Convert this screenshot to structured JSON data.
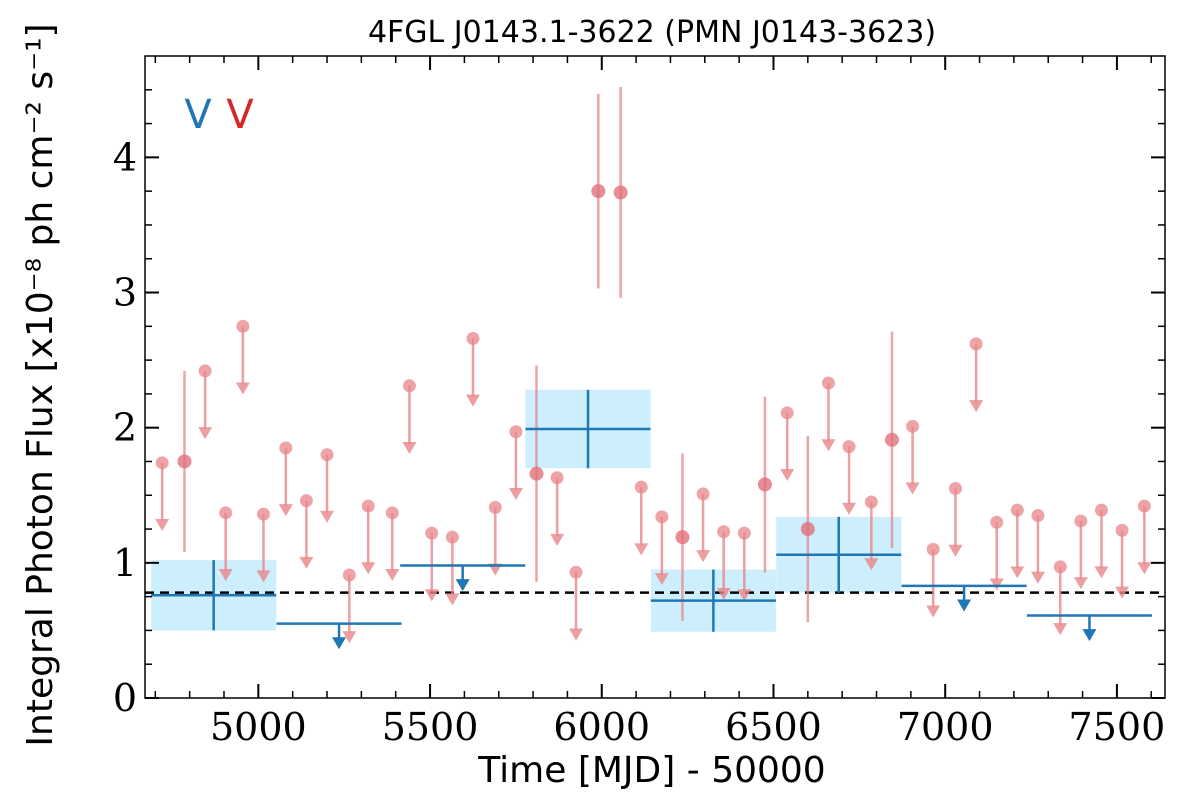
{
  "chart_data": {
    "type": "scatter",
    "title": "4FGL J0143.1-3622 (PMN J0143-3623)",
    "xlabel": "Time [MJD] - 50000",
    "ylabel": "Integral Photon Flux [x10⁻⁸ ph cm⁻² s⁻¹]",
    "xlim": [
      4670,
      7640
    ],
    "ylim": [
      0,
      4.75
    ],
    "x_ticks": [
      5000,
      5500,
      6000,
      6500,
      7000,
      7500
    ],
    "y_ticks": [
      0,
      1,
      2,
      3,
      4
    ],
    "grid": false,
    "mean_flux": 0.78,
    "legend": {
      "placement": "top-left",
      "entries": [
        {
          "label": "V",
          "color": "#1f77b4"
        },
        {
          "label": "V",
          "color": "#d62728"
        }
      ]
    },
    "colors": {
      "long_bins": "#1f77b4",
      "long_bin_band": "#cdeefd",
      "short_bins": "#e8868a",
      "mean_line": "#000000"
    },
    "series": [
      {
        "bin_width_days": 365,
        "detections": [
          {
            "x": 4870,
            "y": 0.76,
            "xerr": 182,
            "yerr": 0.26
          },
          {
            "x": 5960,
            "y": 1.99,
            "xerr": 182,
            "yerr": 0.29
          },
          {
            "x": 6325,
            "y": 0.72,
            "xerr": 182,
            "yerr": 0.23
          },
          {
            "x": 6690,
            "y": 1.06,
            "xerr": 182,
            "yerr": 0.28
          }
        ],
        "upper_limits": [
          {
            "x": 5235,
            "y": 0.55,
            "xerr": 182
          },
          {
            "x": 5595,
            "y": 0.98,
            "xerr": 182
          },
          {
            "x": 7055,
            "y": 0.83,
            "xerr": 182
          },
          {
            "x": 7420,
            "y": 0.61,
            "xerr": 182
          }
        ]
      },
      {
        "bin_width_days": 60,
        "detections": [
          {
            "x": 4785,
            "y": 1.75,
            "yerr": 0.67
          },
          {
            "x": 5810,
            "y": 1.66,
            "yerr": 0.8
          },
          {
            "x": 5990,
            "y": 3.75,
            "yerr": 0.72
          },
          {
            "x": 6055,
            "y": 3.74,
            "yerr": 0.78
          },
          {
            "x": 6235,
            "y": 1.19,
            "yerr": 0.62
          },
          {
            "x": 6475,
            "y": 1.58,
            "yerr": 0.65
          },
          {
            "x": 6600,
            "y": 1.25,
            "yerr": 0.69
          },
          {
            "x": 6845,
            "y": 1.91,
            "yerr": 0.8
          }
        ],
        "upper_limits": [
          {
            "x": 4720,
            "y": 1.74
          },
          {
            "x": 4845,
            "y": 2.42
          },
          {
            "x": 4905,
            "y": 1.37
          },
          {
            "x": 4955,
            "y": 2.75
          },
          {
            "x": 5015,
            "y": 1.36
          },
          {
            "x": 5080,
            "y": 1.85
          },
          {
            "x": 5140,
            "y": 1.46
          },
          {
            "x": 5200,
            "y": 1.8
          },
          {
            "x": 5265,
            "y": 0.91
          },
          {
            "x": 5320,
            "y": 1.42
          },
          {
            "x": 5390,
            "y": 1.37
          },
          {
            "x": 5440,
            "y": 2.31
          },
          {
            "x": 5505,
            "y": 1.22
          },
          {
            "x": 5565,
            "y": 1.19
          },
          {
            "x": 5625,
            "y": 2.66
          },
          {
            "x": 5690,
            "y": 1.41
          },
          {
            "x": 5750,
            "y": 1.97
          },
          {
            "x": 5870,
            "y": 1.63
          },
          {
            "x": 5925,
            "y": 0.93
          },
          {
            "x": 6115,
            "y": 1.56
          },
          {
            "x": 6175,
            "y": 1.34
          },
          {
            "x": 6295,
            "y": 1.51
          },
          {
            "x": 6355,
            "y": 1.23
          },
          {
            "x": 6415,
            "y": 1.22
          },
          {
            "x": 6540,
            "y": 2.11
          },
          {
            "x": 6660,
            "y": 2.33
          },
          {
            "x": 6720,
            "y": 1.86
          },
          {
            "x": 6785,
            "y": 1.45
          },
          {
            "x": 6905,
            "y": 2.01
          },
          {
            "x": 6965,
            "y": 1.1
          },
          {
            "x": 7030,
            "y": 1.55
          },
          {
            "x": 7090,
            "y": 2.62
          },
          {
            "x": 7150,
            "y": 1.3
          },
          {
            "x": 7210,
            "y": 1.39
          },
          {
            "x": 7270,
            "y": 1.35
          },
          {
            "x": 7335,
            "y": 0.97
          },
          {
            "x": 7395,
            "y": 1.31
          },
          {
            "x": 7455,
            "y": 1.39
          },
          {
            "x": 7515,
            "y": 1.24
          },
          {
            "x": 7580,
            "y": 1.42
          }
        ]
      }
    ]
  }
}
